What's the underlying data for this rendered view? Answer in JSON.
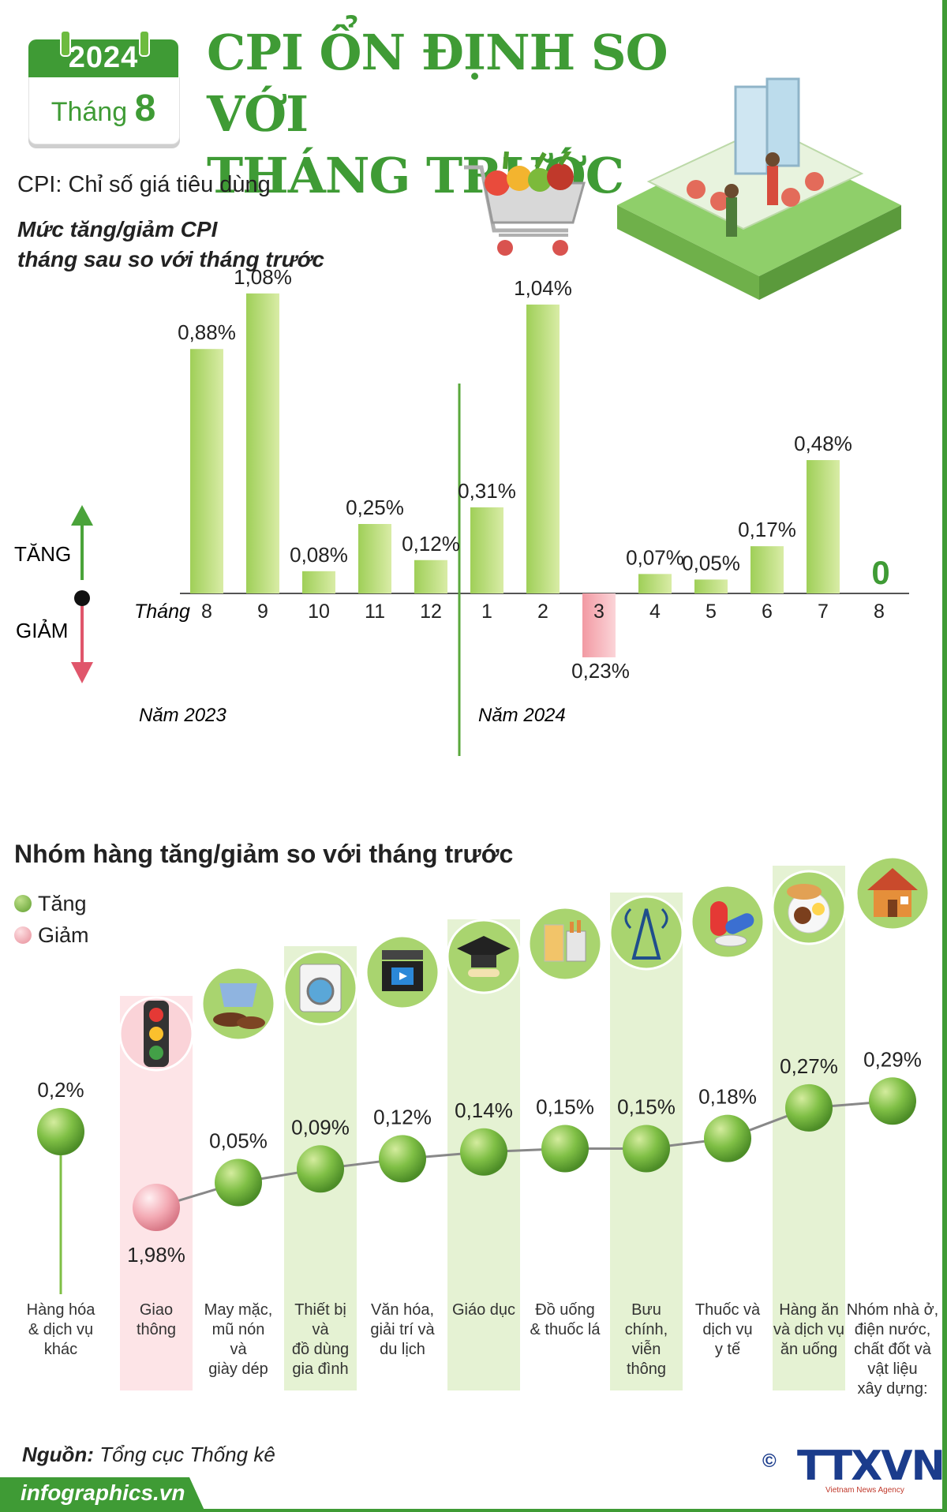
{
  "calendar": {
    "year": "2024",
    "month_label": "Tháng",
    "month_num": "8"
  },
  "title": [
    "CPI ỔN ĐỊNH SO VỚI",
    "THÁNG TRƯỚC"
  ],
  "cpi_definition": "CPI: Chỉ số giá tiêu dùng",
  "subtitle": [
    "Mức tăng/giảm CPI",
    "tháng sau so với tháng trước"
  ],
  "colors": {
    "green": "#3f9b35",
    "bar_green": "#9fcf58",
    "bar_light": "#d9eca6",
    "red": "#f3aab0",
    "arrow_up": "#4aa33a",
    "arrow_down": "#e0566b"
  },
  "chart_data": [
    {
      "type": "bar",
      "title": "Mức tăng/giảm CPI tháng sau so với tháng trước",
      "axis_label": "Tháng",
      "up_label": "TĂNG",
      "down_label": "GIẢM",
      "categories": [
        "8",
        "9",
        "10",
        "11",
        "12",
        "1",
        "2",
        "3",
        "4",
        "5",
        "6",
        "7",
        "8"
      ],
      "values": [
        0.88,
        1.08,
        0.08,
        0.25,
        0.12,
        0.31,
        1.04,
        -0.23,
        0.07,
        0.05,
        0.17,
        0.48,
        0
      ],
      "value_labels": [
        "0,88%",
        "1,08%",
        "0,08%",
        "0,25%",
        "0,12%",
        "0,31%",
        "1,04%",
        "0,23%",
        "0,07%",
        "0,05%",
        "0,17%",
        "0,48%",
        "0"
      ],
      "year_labels": [
        {
          "text": "Năm 2023",
          "starts_at": "8"
        },
        {
          "text": "Năm 2024",
          "starts_at": "1"
        }
      ],
      "ylim": [
        -0.23,
        1.08
      ]
    },
    {
      "type": "scatter",
      "title": "Nhóm hàng tăng/giảm so với tháng trước",
      "legend": [
        {
          "label": "Tăng",
          "color": "#76b843"
        },
        {
          "label": "Giảm",
          "color": "#f2a3ad"
        }
      ],
      "categories": [
        "Hàng hóa & dịch vụ khác",
        "Giao thông",
        "May mặc, mũ nón và giày dép",
        "Thiết bị và đồ dùng gia đình",
        "Văn hóa, giải trí và du lịch",
        "Giáo dục",
        "Đồ uống & thuốc lá",
        "Bưu chính, viễn thông",
        "Thuốc và dịch vụ y tế",
        "Hàng ăn và dịch vụ ăn uống",
        "Nhóm nhà ở, điện nước, chất đốt và vật liệu xây dựng:"
      ],
      "category_lines": [
        [
          "Hàng hóa",
          "& dịch vụ",
          "khác"
        ],
        [
          "Giao",
          "thông"
        ],
        [
          "May mặc,",
          "mũ nón",
          "và",
          "giày dép"
        ],
        [
          "Thiết bị",
          "và",
          "đồ dùng",
          "gia đình"
        ],
        [
          "Văn hóa,",
          "giải trí và",
          "du lịch"
        ],
        [
          "Giáo dục"
        ],
        [
          "Đồ uống",
          "& thuốc lá"
        ],
        [
          "Bưu",
          "chính,",
          "viễn",
          "thông"
        ],
        [
          "Thuốc và",
          "dịch vụ",
          "y tế"
        ],
        [
          "Hàng ăn",
          "và dịch vụ",
          "ăn uống"
        ],
        [
          "Nhóm nhà ở,",
          "điện nước,",
          "chất đốt và",
          "vật liệu",
          "xây dựng:"
        ]
      ],
      "values": [
        0.2,
        -1.98,
        0.05,
        0.09,
        0.12,
        0.14,
        0.15,
        0.15,
        0.18,
        0.27,
        0.29
      ],
      "value_labels": [
        "0,2%",
        "1,98%",
        "0,05%",
        "0,09%",
        "0,12%",
        "0,14%",
        "0,15%",
        "0,15%",
        "0,18%",
        "0,27%",
        "0,29%"
      ],
      "direction": [
        "up",
        "down",
        "up",
        "up",
        "up",
        "up",
        "up",
        "up",
        "up",
        "up",
        "up"
      ],
      "icons": [
        "",
        "traffic-light-icon",
        "clothes-shoes-icon",
        "washing-machine-icon",
        "film-clapper-icon",
        "graduation-cap-icon",
        "drinks-cigarettes-icon",
        "radio-tower-icon",
        "medicine-pills-icon",
        "food-plate-icon",
        "house-icon"
      ]
    }
  ],
  "section2_title": "Nhóm hàng tăng/giảm so với tháng trước",
  "source": {
    "label": "Nguồn:",
    "value": "Tổng cục Thống kê"
  },
  "footer": {
    "site": "infographics.vn",
    "logo": "TTXVN",
    "logo_sub": "Vietnam News Agency",
    "copyright": "©"
  }
}
